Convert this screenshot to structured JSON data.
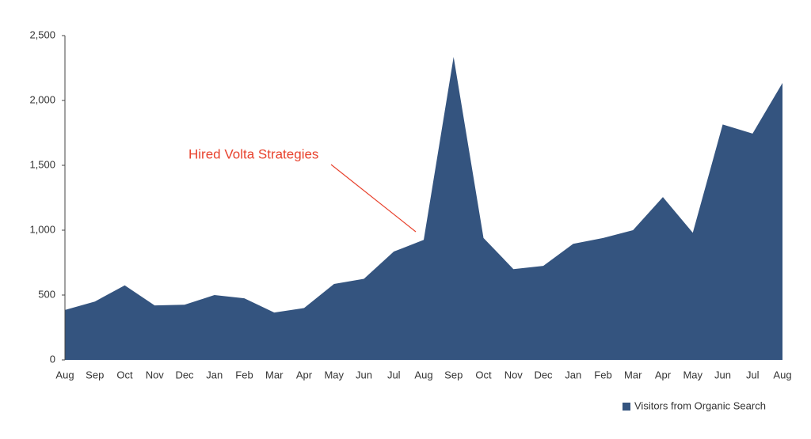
{
  "chart_data": {
    "type": "area",
    "categories": [
      "Aug",
      "Sep",
      "Oct",
      "Nov",
      "Dec",
      "Jan",
      "Feb",
      "Mar",
      "Apr",
      "May",
      "Jun",
      "Jul",
      "Aug",
      "Sep",
      "Oct",
      "Nov",
      "Dec",
      "Jan",
      "Feb",
      "Mar",
      "Apr",
      "May",
      "Jun",
      "Jul",
      "Aug"
    ],
    "series": [
      {
        "name": "Visitors from Organic Search",
        "color": "#34547f",
        "values": [
          385,
          450,
          575,
          420,
          425,
          500,
          475,
          365,
          400,
          585,
          625,
          835,
          925,
          2335,
          940,
          700,
          725,
          895,
          940,
          1000,
          1255,
          980,
          1815,
          1745,
          2135
        ]
      }
    ],
    "ylim": [
      0,
      2500
    ],
    "yticks": [
      0,
      500,
      {
        "value": 1000,
        "label": "1,000"
      },
      {
        "value": 1500,
        "label": "1,500"
      },
      {
        "value": 2000,
        "label": "2,000"
      },
      {
        "value": 2500,
        "label": "2,500"
      }
    ],
    "grid": false,
    "legend": "bottom-right",
    "annotations": [
      {
        "text": "Hired Volta Strategies"
      }
    ]
  }
}
